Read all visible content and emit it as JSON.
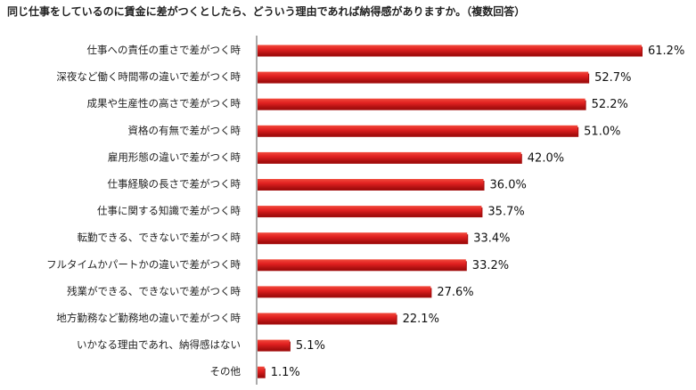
{
  "chart_data": {
    "type": "bar",
    "orientation": "horizontal",
    "title": "同じ仕事をしているのに賃金に差がつくとしたら、どういう理由であれば納得感がありますか。（複数回答）",
    "categories": [
      "仕事への責任の重さで差がつく時",
      "深夜など働く時間帯の違いで差がつく時",
      "成果や生産性の高さで差がつく時",
      "資格の有無で差がつく時",
      "雇用形態の違いで差がつく時",
      "仕事経験の長さで差がつく時",
      "仕事に関する知識で差がつく時",
      "転勤できる、できないで差がつく時",
      "フルタイムかパートかの違いで差がつく時",
      "残業ができる、できないで差がつく時",
      "地方勤務など勤務地の違いで差がつく時",
      "いかなる理由であれ、納得感はない",
      "その他"
    ],
    "values": [
      61.2,
      52.7,
      52.2,
      51.0,
      42.0,
      36.0,
      35.7,
      33.4,
      33.2,
      27.6,
      22.1,
      5.1,
      1.1
    ],
    "value_labels": [
      "61.2%",
      "52.7%",
      "52.2%",
      "51.0%",
      "42.0%",
      "36.0%",
      "35.7%",
      "33.4%",
      "33.2%",
      "27.6%",
      "22.1%",
      "5.1%",
      "1.1%"
    ],
    "xlim": [
      0,
      61.2
    ],
    "xlabel": "",
    "ylabel": "",
    "grid": false,
    "legend": "none",
    "bar_color": "#e02020",
    "bar_shade_color": "#a30d0d"
  }
}
